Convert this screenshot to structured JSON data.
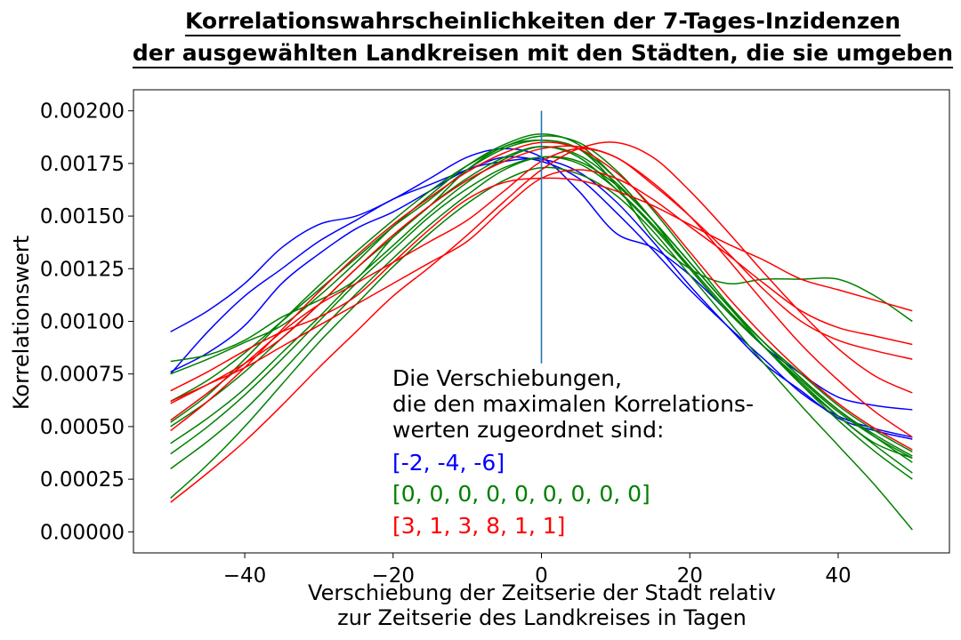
{
  "chart_data": {
    "type": "line",
    "title_lines": [
      "Korrelationswahrscheinlichkeiten der 7-Tages-Inzidenzen",
      "der ausgewählten Landkreisen mit den Städten, die sie umgeben"
    ],
    "xlabel_lines": [
      "Verschiebung der Zeitserie der Stadt relativ",
      "zur Zeitserie des Landkreises in Tagen"
    ],
    "ylabel": "Korrelationswert",
    "xlim": [
      -55,
      55
    ],
    "ylim": [
      -0.0001,
      0.0021
    ],
    "x_ticks": [
      -40,
      -20,
      0,
      20,
      40
    ],
    "x_tick_labels": [
      "−40",
      "−20",
      "0",
      "20",
      "40"
    ],
    "y_ticks": [
      0,
      0.00025,
      0.0005,
      0.00075,
      0.001,
      0.00125,
      0.0015,
      0.00175,
      0.002
    ],
    "y_tick_labels": [
      "0.00000",
      "0.00025",
      "0.00050",
      "0.00075",
      "0.00100",
      "0.00125",
      "0.00150",
      "0.00175",
      "0.00200"
    ],
    "grid": false,
    "vline": {
      "x": 0,
      "y_range": [
        0.0008,
        0.002
      ],
      "color": "#1f77b4"
    },
    "colors": {
      "blue": "#0000ff",
      "green": "#008000",
      "red": "#ff0000"
    },
    "annotation": {
      "lines": [
        "Die Verschiebungen,",
        "die den maximalen Korrelations-",
        "werten zugeordnet sind:"
      ],
      "shifts": [
        {
          "text": "[-2, -4, -6]",
          "color": "#0000ff"
        },
        {
          "text": "[0, 0, 0, 0, 0, 0, 0, 0, 0]",
          "color": "#008000"
        },
        {
          "text": "[3, 1, 3, 8, 1, 1]",
          "color": "#ff0000"
        }
      ]
    },
    "x": [
      -50,
      -45,
      -40,
      -35,
      -30,
      -25,
      -20,
      -15,
      -10,
      -5,
      0,
      5,
      10,
      15,
      20,
      25,
      30,
      35,
      40,
      45,
      50
    ],
    "series": [
      {
        "color": "#0000ff",
        "values": [
          0.00095,
          0.00105,
          0.00118,
          0.00135,
          0.00146,
          0.0015,
          0.00158,
          0.00168,
          0.00178,
          0.00182,
          0.00178,
          0.00162,
          0.00142,
          0.00135,
          0.00122,
          0.00105,
          0.00088,
          0.00075,
          0.00064,
          0.0006,
          0.00058
        ]
      },
      {
        "color": "#0000ff",
        "values": [
          0.00075,
          0.00095,
          0.00112,
          0.00125,
          0.00138,
          0.00148,
          0.00158,
          0.00165,
          0.00172,
          0.00178,
          0.00176,
          0.00168,
          0.00152,
          0.00134,
          0.00115,
          0.00098,
          0.00082,
          0.00066,
          0.00055,
          0.00049,
          0.00045
        ]
      },
      {
        "color": "#0000ff",
        "values": [
          0.00076,
          0.00085,
          0.00098,
          0.00118,
          0.00132,
          0.00144,
          0.00152,
          0.00162,
          0.00172,
          0.00176,
          0.00177,
          0.00171,
          0.00157,
          0.00138,
          0.00117,
          0.00098,
          0.0008,
          0.00067,
          0.00054,
          0.00048,
          0.00044
        ]
      },
      {
        "color": "#008000",
        "values": [
          0.00081,
          0.00084,
          0.00091,
          0.00102,
          0.0011,
          0.0012,
          0.0014,
          0.00155,
          0.00172,
          0.00183,
          0.00186,
          0.00182,
          0.00165,
          0.0014,
          0.00125,
          0.00118,
          0.0012,
          0.0012,
          0.0012,
          0.00112,
          0.001
        ]
      },
      {
        "color": "#008000",
        "values": [
          0.00075,
          0.00082,
          0.0009,
          0.00098,
          0.00112,
          0.00128,
          0.00145,
          0.0016,
          0.00174,
          0.00184,
          0.00189,
          0.00184,
          0.00168,
          0.00148,
          0.00125,
          0.00105,
          0.00088,
          0.0007,
          0.00055,
          0.00042,
          0.00035
        ]
      },
      {
        "color": "#008000",
        "values": [
          0.00062,
          0.00072,
          0.00085,
          0.001,
          0.00115,
          0.0013,
          0.00145,
          0.00158,
          0.00172,
          0.00182,
          0.00186,
          0.00182,
          0.00168,
          0.00148,
          0.00128,
          0.00108,
          0.0009,
          0.00075,
          0.0006,
          0.00048,
          0.00038
        ]
      },
      {
        "color": "#008000",
        "values": [
          0.0005,
          0.00062,
          0.00076,
          0.00092,
          0.00108,
          0.00125,
          0.0014,
          0.00155,
          0.00168,
          0.00178,
          0.00183,
          0.00178,
          0.00163,
          0.00145,
          0.00125,
          0.00105,
          0.00088,
          0.00072,
          0.00057,
          0.00045,
          0.00035
        ]
      },
      {
        "color": "#008000",
        "values": [
          0.00042,
          0.00054,
          0.00068,
          0.00085,
          0.00102,
          0.0012,
          0.00136,
          0.00152,
          0.00166,
          0.00177,
          0.00183,
          0.00179,
          0.00166,
          0.00148,
          0.00128,
          0.00108,
          0.0009,
          0.00073,
          0.00058,
          0.00045,
          0.00033
        ]
      },
      {
        "color": "#008000",
        "values": [
          0.00037,
          0.0005,
          0.00065,
          0.00082,
          0.001,
          0.00118,
          0.00134,
          0.0015,
          0.00163,
          0.00173,
          0.00178,
          0.00175,
          0.00163,
          0.00146,
          0.00126,
          0.00106,
          0.00088,
          0.00071,
          0.00055,
          0.00041,
          0.00028
        ]
      },
      {
        "color": "#008000",
        "values": [
          0.0003,
          0.00043,
          0.00058,
          0.00076,
          0.00095,
          0.00113,
          0.0013,
          0.00146,
          0.0016,
          0.00172,
          0.00178,
          0.00176,
          0.00165,
          0.00148,
          0.00128,
          0.00108,
          0.00088,
          0.0007,
          0.00053,
          0.00038,
          0.00025
        ]
      },
      {
        "color": "#008000",
        "values": [
          0.00016,
          0.00032,
          0.0005,
          0.0007,
          0.0009,
          0.00108,
          0.00126,
          0.00142,
          0.00156,
          0.00167,
          0.00173,
          0.0017,
          0.0016,
          0.00143,
          0.00122,
          0.00101,
          0.0008,
          0.0006,
          0.00041,
          0.00022,
          1e-05
        ]
      },
      {
        "color": "#008000",
        "values": [
          0.00052,
          0.00065,
          0.00082,
          0.001,
          0.00117,
          0.00133,
          0.00148,
          0.00162,
          0.00174,
          0.00183,
          0.00188,
          0.00185,
          0.00172,
          0.00153,
          0.00131,
          0.00109,
          0.0009,
          0.00073,
          0.00058,
          0.00046,
          0.00036
        ]
      },
      {
        "color": "#ff0000",
        "values": [
          0.00067,
          0.00076,
          0.00086,
          0.00095,
          0.00102,
          0.00112,
          0.00128,
          0.00144,
          0.00158,
          0.00166,
          0.00168,
          0.00167,
          0.00162,
          0.00155,
          0.00146,
          0.00137,
          0.00129,
          0.0012,
          0.00115,
          0.0011,
          0.00105
        ]
      },
      {
        "color": "#ff0000",
        "values": [
          0.00062,
          0.0007,
          0.00078,
          0.00088,
          0.00098,
          0.00108,
          0.00118,
          0.00128,
          0.00138,
          0.00154,
          0.00168,
          0.00172,
          0.00168,
          0.00158,
          0.00145,
          0.00132,
          0.00118,
          0.00105,
          0.00097,
          0.00093,
          0.00089
        ]
      },
      {
        "color": "#ff0000",
        "values": [
          0.00053,
          0.00066,
          0.0008,
          0.00095,
          0.00108,
          0.00118,
          0.00128,
          0.00138,
          0.00148,
          0.00162,
          0.00176,
          0.00182,
          0.00178,
          0.00165,
          0.0015,
          0.00133,
          0.00115,
          0.001,
          0.00091,
          0.00086,
          0.00082
        ]
      },
      {
        "color": "#ff0000",
        "values": [
          0.00014,
          0.00028,
          0.00043,
          0.0006,
          0.00078,
          0.00095,
          0.00112,
          0.00126,
          0.00141,
          0.00157,
          0.00172,
          0.00182,
          0.00185,
          0.00178,
          0.00162,
          0.00143,
          0.00123,
          0.00104,
          0.00087,
          0.00074,
          0.00066
        ]
      },
      {
        "color": "#ff0000",
        "values": [
          0.00048,
          0.00062,
          0.00078,
          0.00096,
          0.00114,
          0.00131,
          0.00146,
          0.00159,
          0.00171,
          0.0018,
          0.00185,
          0.00182,
          0.00171,
          0.00154,
          0.00133,
          0.00112,
          0.00093,
          0.00076,
          0.00061,
          0.00049,
          0.00039
        ]
      },
      {
        "color": "#ff0000",
        "values": [
          0.00061,
          0.0007,
          0.0008,
          0.00092,
          0.00108,
          0.00125,
          0.00141,
          0.00155,
          0.00167,
          0.00176,
          0.00182,
          0.00183,
          0.00178,
          0.00166,
          0.0015,
          0.0013,
          0.00109,
          0.00089,
          0.00072,
          0.00057,
          0.00045
        ]
      }
    ]
  }
}
